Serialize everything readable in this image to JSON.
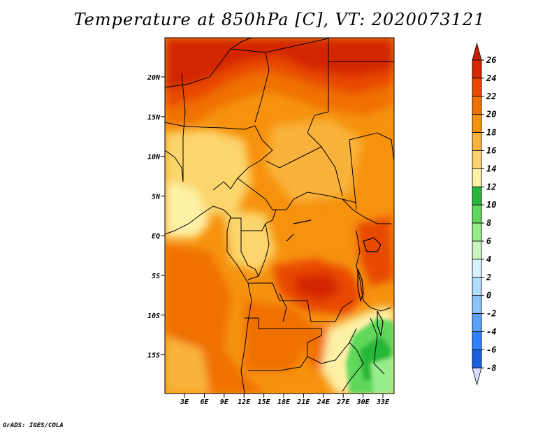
{
  "title": "Temperature at 850hPa [C], VT: 2020073121",
  "credit": "GrADS: IGES/COLA",
  "map": {
    "lat_labels": [
      "20N",
      "15N",
      "10N",
      "5N",
      "EQ",
      "5S",
      "10S",
      "15S"
    ],
    "lon_labels": [
      "3E",
      "6E",
      "9E",
      "12E",
      "15E",
      "18E",
      "21E",
      "24E",
      "27E",
      "30E",
      "33E"
    ]
  },
  "colorbar": {
    "labels": [
      "26",
      "24",
      "22",
      "20",
      "18",
      "16",
      "14",
      "12",
      "10",
      "8",
      "6",
      "4",
      "2",
      "0",
      "-2",
      "-4",
      "-6",
      "-8"
    ],
    "colors": [
      "#d32700",
      "#e84800",
      "#f07000",
      "#f6920e",
      "#f9b23a",
      "#fcd56d",
      "#fdf1a6",
      "#27b637",
      "#5fd85b",
      "#97ec8c",
      "#c9f7bf",
      "#d6f2ff",
      "#b4dcff",
      "#8dc3ff",
      "#5aa2ff",
      "#2e82ff",
      "#1a5fe0",
      "#0d3cbb",
      "#0a2296",
      "#000b68"
    ],
    "over_color": "#c81e00",
    "under_color": "#d8dcff"
  }
}
